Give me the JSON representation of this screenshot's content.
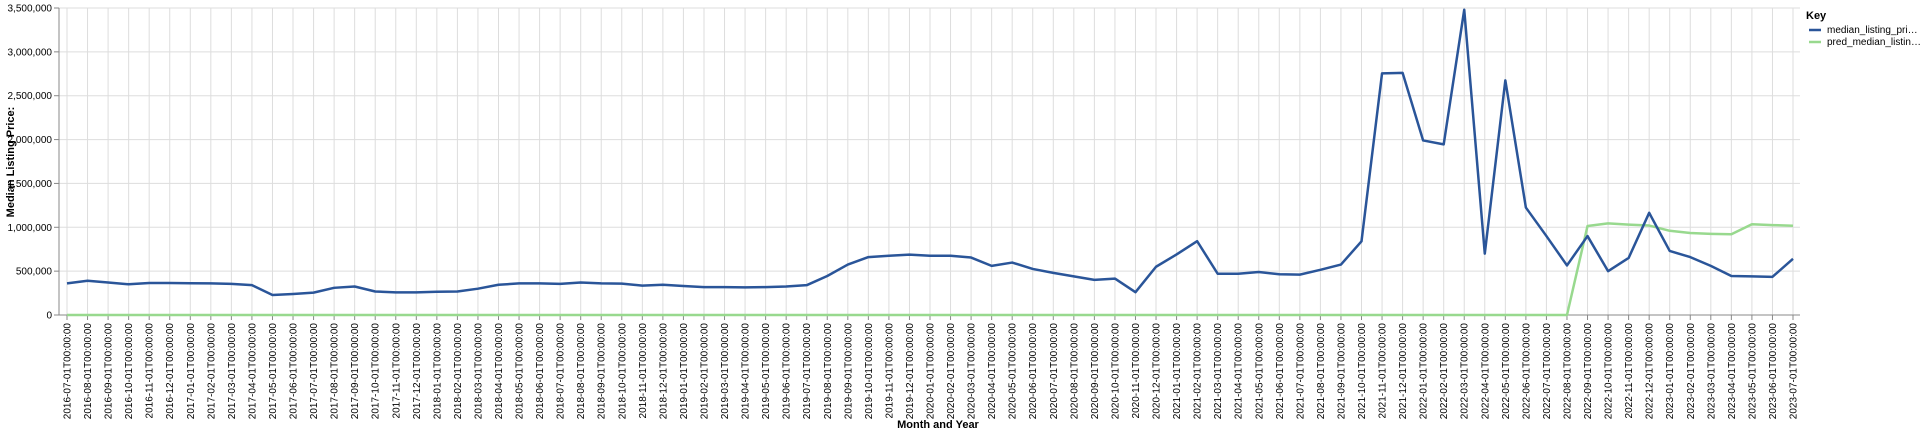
{
  "chart_data": {
    "type": "line",
    "xlabel": "Month and Year",
    "ylabel": "Median Listing Price:",
    "ylim": [
      0,
      3500000
    ],
    "yticks": [
      "0",
      "500,000",
      "1,000,000",
      "1,500,000",
      "2,000,000",
      "2,500,000",
      "3,000,000",
      "3,500,000"
    ],
    "grid": true,
    "legend": {
      "title": "Key",
      "placement": "top-right"
    },
    "x": [
      "2016-07-01T00:00:00",
      "2016-08-01T00:00:00",
      "2016-09-01T00:00:00",
      "2016-10-01T00:00:00",
      "2016-11-01T00:00:00",
      "2016-12-01T00:00:00",
      "2017-01-01T00:00:00",
      "2017-02-01T00:00:00",
      "2017-03-01T00:00:00",
      "2017-04-01T00:00:00",
      "2017-05-01T00:00:00",
      "2017-06-01T00:00:00",
      "2017-07-01T00:00:00",
      "2017-08-01T00:00:00",
      "2017-09-01T00:00:00",
      "2017-10-01T00:00:00",
      "2017-11-01T00:00:00",
      "2017-12-01T00:00:00",
      "2018-01-01T00:00:00",
      "2018-02-01T00:00:00",
      "2018-03-01T00:00:00",
      "2018-04-01T00:00:00",
      "2018-05-01T00:00:00",
      "2018-06-01T00:00:00",
      "2018-07-01T00:00:00",
      "2018-08-01T00:00:00",
      "2018-09-01T00:00:00",
      "2018-10-01T00:00:00",
      "2018-11-01T00:00:00",
      "2018-12-01T00:00:00",
      "2019-01-01T00:00:00",
      "2019-02-01T00:00:00",
      "2019-03-01T00:00:00",
      "2019-04-01T00:00:00",
      "2019-05-01T00:00:00",
      "2019-06-01T00:00:00",
      "2019-07-01T00:00:00",
      "2019-08-01T00:00:00",
      "2019-09-01T00:00:00",
      "2019-10-01T00:00:00",
      "2019-11-01T00:00:00",
      "2019-12-01T00:00:00",
      "2020-01-01T00:00:00",
      "2020-02-01T00:00:00",
      "2020-03-01T00:00:00",
      "2020-04-01T00:00:00",
      "2020-05-01T00:00:00",
      "2020-06-01T00:00:00",
      "2020-07-01T00:00:00",
      "2020-08-01T00:00:00",
      "2020-09-01T00:00:00",
      "2020-10-01T00:00:00",
      "2020-11-01T00:00:00",
      "2020-12-01T00:00:00",
      "2021-01-01T00:00:00",
      "2021-02-01T00:00:00",
      "2021-03-01T00:00:00",
      "2021-04-01T00:00:00",
      "2021-05-01T00:00:00",
      "2021-06-01T00:00:00",
      "2021-07-01T00:00:00",
      "2021-08-01T00:00:00",
      "2021-09-01T00:00:00",
      "2021-10-01T00:00:00",
      "2021-11-01T00:00:00",
      "2021-12-01T00:00:00",
      "2022-01-01T00:00:00",
      "2022-02-01T00:00:00",
      "2022-03-01T00:00:00",
      "2022-04-01T00:00:00",
      "2022-05-01T00:00:00",
      "2022-06-01T00:00:00",
      "2022-07-01T00:00:00",
      "2022-08-01T00:00:00",
      "2022-09-01T00:00:00",
      "2022-10-01T00:00:00",
      "2022-11-01T00:00:00",
      "2022-12-01T00:00:00",
      "2023-01-01T00:00:00",
      "2023-02-01T00:00:00",
      "2023-03-01T00:00:00",
      "2023-04-01T00:00:00",
      "2023-05-01T00:00:00",
      "2023-06-01T00:00:00",
      "2023-07-01T00:00:00"
    ],
    "series": [
      {
        "name": "median_listing_pri…",
        "color": "#2a5599",
        "values": [
          360000,
          390000,
          370000,
          350000,
          365000,
          365000,
          362000,
          360000,
          355000,
          340000,
          228000,
          240000,
          255000,
          310000,
          325000,
          268000,
          258000,
          258000,
          265000,
          268000,
          300000,
          345000,
          360000,
          360000,
          355000,
          370000,
          360000,
          358000,
          335000,
          345000,
          330000,
          318000,
          318000,
          315000,
          318000,
          325000,
          340000,
          445000,
          575000,
          660000,
          675000,
          688000,
          675000,
          675000,
          655000,
          560000,
          598000,
          525000,
          480000,
          440000,
          400000,
          415000,
          260000,
          550000,
          690000,
          842000,
          470000,
          470000,
          490000,
          465000,
          460000,
          515000,
          575000,
          840000,
          2755000,
          2760000,
          1990000,
          1945000,
          3480000,
          700000,
          2675000,
          1225000,
          900000,
          565000,
          900000,
          500000,
          650000,
          1165000,
          730000,
          660000,
          560000,
          445000,
          440000,
          435000,
          640000
        ]
      },
      {
        "name": "pred_median_listin…",
        "color": "#98d98e",
        "values": [
          0,
          0,
          0,
          0,
          0,
          0,
          0,
          0,
          0,
          0,
          0,
          0,
          0,
          0,
          0,
          0,
          0,
          0,
          0,
          0,
          0,
          0,
          0,
          0,
          0,
          0,
          0,
          0,
          0,
          0,
          0,
          0,
          0,
          0,
          0,
          0,
          0,
          0,
          0,
          0,
          0,
          0,
          0,
          0,
          0,
          0,
          0,
          0,
          0,
          0,
          0,
          0,
          0,
          0,
          0,
          0,
          0,
          0,
          0,
          0,
          0,
          0,
          0,
          0,
          0,
          0,
          0,
          0,
          0,
          0,
          0,
          0,
          0,
          0,
          1015000,
          1045000,
          1030000,
          1020000,
          960000,
          935000,
          925000,
          920000,
          1035000,
          1025000,
          1018000
        ]
      }
    ]
  }
}
